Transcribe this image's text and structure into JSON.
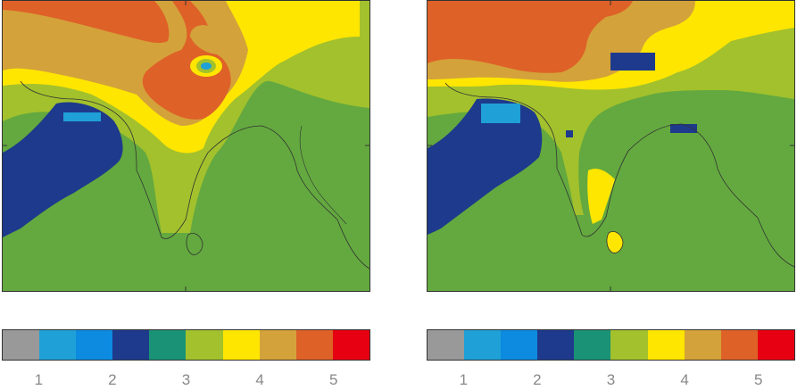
{
  "palette": [
    "#999999",
    "#1fa0d6",
    "#0c8be0",
    "#1e3a8c",
    "#1a9275",
    "#a3c12c",
    "#ffe600",
    "#d4a23a",
    "#de6128",
    "#e60012"
  ],
  "colorbar_ticks": [
    "1",
    "2",
    "3",
    "4",
    "5"
  ],
  "maps": [
    {
      "name": "left-map"
    },
    {
      "name": "right-map"
    }
  ]
}
